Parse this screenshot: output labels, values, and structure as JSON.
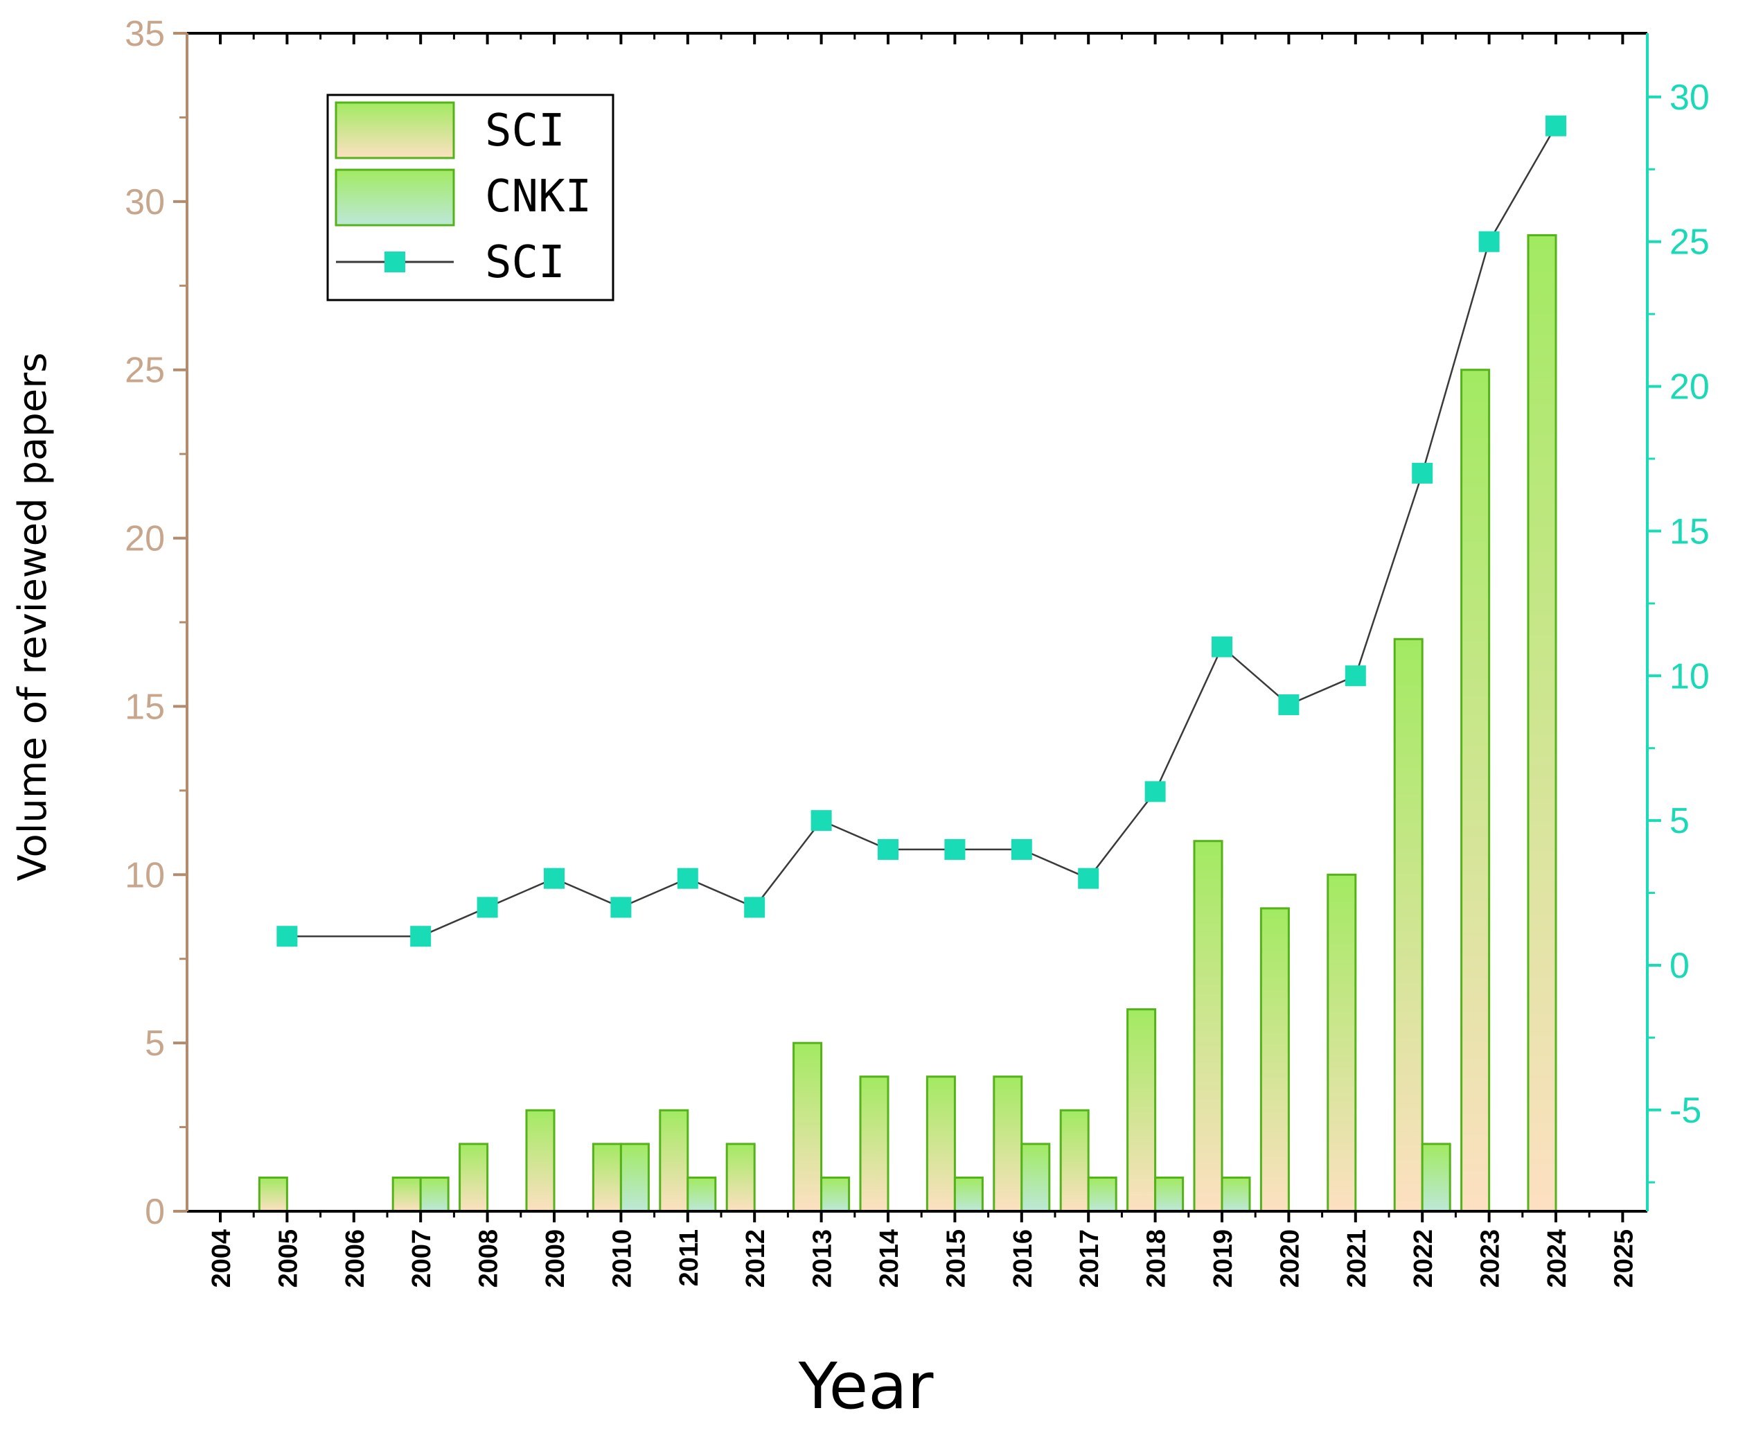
{
  "chart_data": {
    "type": "bar",
    "title": "",
    "xlabel": "Year",
    "ylabel": "Volume of reviewed papers",
    "categories": [
      "2004",
      "2005",
      "2006",
      "2007",
      "2008",
      "2009",
      "2010",
      "2011",
      "2012",
      "2013",
      "2014",
      "2015",
      "2016",
      "2017",
      "2018",
      "2019",
      "2020",
      "2021",
      "2022",
      "2023",
      "2024",
      "2025"
    ],
    "ylim": [
      0,
      35
    ],
    "yticks": [
      "0",
      "5",
      "10",
      "15",
      "20",
      "25",
      "30",
      "35"
    ],
    "y2lim": [
      -8.5,
      32.2
    ],
    "y2ticks": [
      "-5",
      "0",
      "5",
      "10",
      "15",
      "20",
      "25",
      "30"
    ],
    "series": [
      {
        "name": "SCI",
        "kind": "bar",
        "axis": "left",
        "values": [
          0,
          1,
          0,
          1,
          2,
          3,
          2,
          3,
          2,
          5,
          4,
          4,
          4,
          3,
          6,
          11,
          9,
          10,
          17,
          25,
          29,
          0
        ]
      },
      {
        "name": "CNKI",
        "kind": "bar",
        "axis": "left",
        "values": [
          0,
          0,
          0,
          1,
          0,
          0,
          2,
          1,
          0,
          1,
          0,
          1,
          2,
          1,
          1,
          1,
          0,
          0,
          2,
          0,
          0,
          0
        ]
      },
      {
        "name": "SCI",
        "kind": "line",
        "axis": "right",
        "values": [
          null,
          1,
          null,
          1,
          2,
          3,
          2,
          3,
          2,
          5,
          4,
          4,
          4,
          3,
          6,
          11,
          9,
          10,
          17,
          25,
          29,
          null
        ]
      }
    ],
    "legend": {
      "position": "top-left",
      "entries": [
        "SCI",
        "CNKI",
        "SCI"
      ]
    },
    "colors": {
      "bar_stroke": "#55b31a",
      "sci_top": "#a2ea62",
      "sci_bottom": "#fde0c2",
      "cnki_top": "#a2ea62",
      "cnki_bottom": "#bde8d8",
      "line": "#3a3a3a",
      "marker": "#19dcb6",
      "left_axis": "#b38b6d",
      "right_axis": "#19dcb6"
    }
  }
}
